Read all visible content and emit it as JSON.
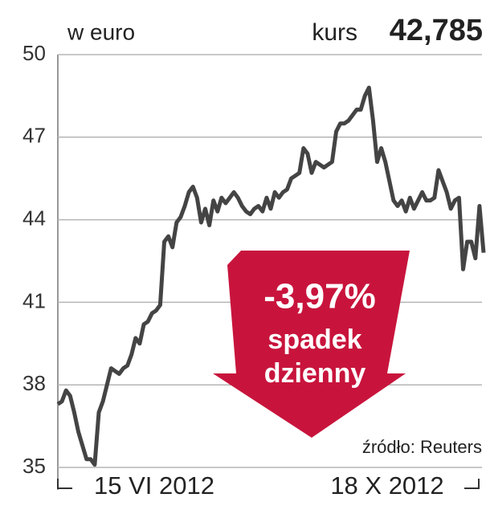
{
  "chart_data": {
    "type": "line",
    "title": "w euro",
    "price_label": "kurs",
    "price_value": "42,785",
    "x_range_labels": [
      "15 VI 2012",
      "18 X 2012"
    ],
    "annotation": "-3,97%",
    "annotation_lines": [
      "spadek",
      "dzienny"
    ],
    "source": "źródło: Reuters",
    "color": "#444444",
    "annotation_color": "#c8143c",
    "grid": true,
    "ylim": [
      35,
      50
    ],
    "yticks": [
      35,
      38,
      41,
      44,
      47,
      50
    ],
    "values": [
      37.3,
      37.4,
      37.8,
      37.6,
      37.0,
      36.3,
      35.8,
      35.3,
      35.3,
      35.1,
      37.0,
      37.4,
      38.0,
      38.6,
      38.5,
      38.4,
      38.6,
      38.7,
      39.1,
      39.7,
      39.5,
      40.2,
      40.3,
      40.6,
      40.7,
      40.9,
      43.2,
      43.4,
      43.0,
      43.9,
      44.1,
      44.5,
      45.0,
      45.2,
      44.8,
      43.9,
      44.4,
      43.8,
      44.7,
      44.3,
      44.8,
      44.6,
      44.8,
      45.0,
      44.8,
      44.5,
      44.3,
      44.2,
      44.4,
      44.5,
      44.3,
      44.8,
      44.4,
      45.0,
      44.8,
      45.0,
      45.1,
      45.5,
      45.6,
      45.7,
      46.6,
      46.4,
      45.7,
      46.1,
      46.0,
      45.9,
      46.0,
      46.1,
      47.2,
      47.5,
      47.5,
      47.6,
      47.8,
      48.0,
      48.0,
      48.5,
      48.8,
      47.6,
      46.1,
      46.6,
      46.1,
      45.4,
      44.7,
      44.5,
      44.7,
      44.3,
      44.8,
      44.4,
      44.7,
      45.0,
      44.7,
      44.7,
      44.8,
      45.8,
      45.4,
      45.0,
      44.4,
      44.7,
      44.8,
      42.2,
      43.2,
      43.2,
      42.6,
      44.5,
      42.8
    ]
  }
}
